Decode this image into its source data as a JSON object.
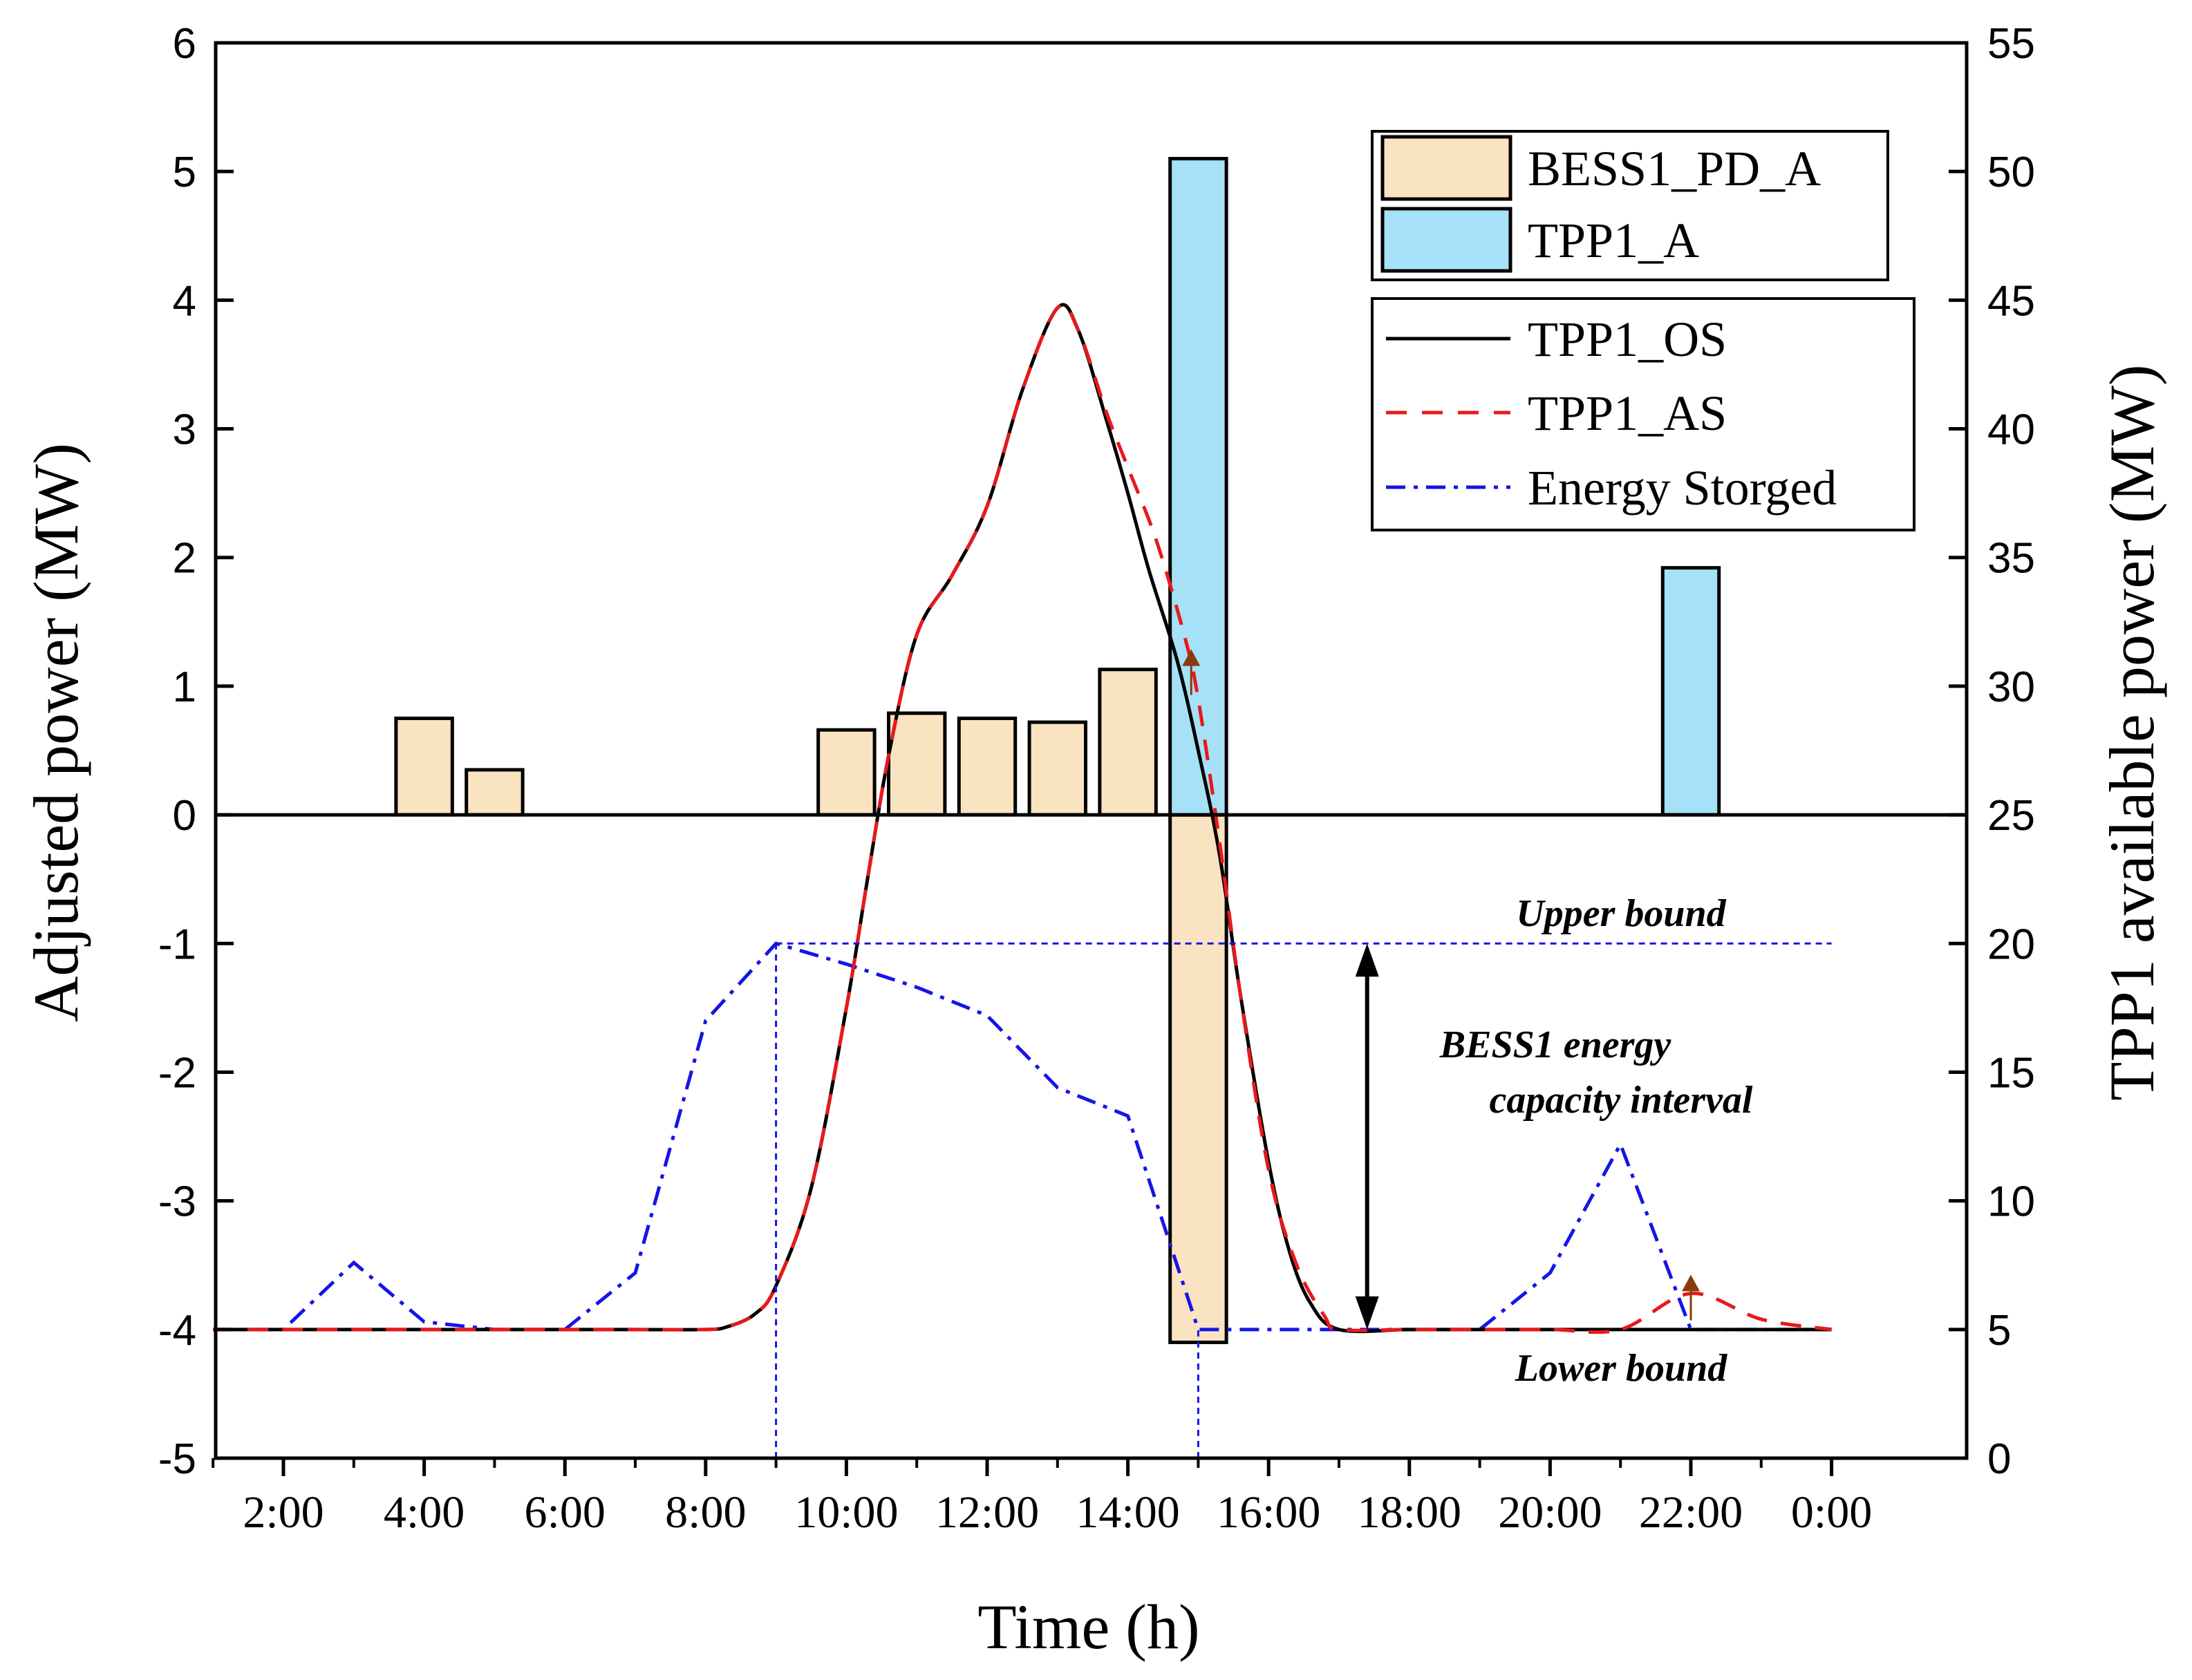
{
  "chart_data": {
    "type": "bar+line",
    "xlabel": "Time (h)",
    "ylabel_left": "Adjusted power (MW)",
    "ylabel_right": "TPP1 available power (MW)",
    "x_ticks": [
      "2:00",
      "4:00",
      "6:00",
      "8:00",
      "10:00",
      "12:00",
      "14:00",
      "16:00",
      "18:00",
      "20:00",
      "22:00",
      "0:00"
    ],
    "x_range": [
      0,
      24.0
    ],
    "y_left_range": [
      -5,
      6
    ],
    "y_left_ticks": [
      "-5",
      "-4",
      "-3",
      "-2",
      "-1",
      "0",
      "1",
      "2",
      "3",
      "4",
      "5",
      "6"
    ],
    "y_right_range": [
      0,
      55
    ],
    "y_right_ticks": [
      "0",
      "5",
      "10",
      "15",
      "20",
      "25",
      "30",
      "35",
      "40",
      "45",
      "50",
      "55"
    ],
    "grid": false,
    "legend_position": "top-right",
    "bar_series": [
      {
        "name": "BESS1_PD_A",
        "color": "#FAE3C0",
        "axis": "left",
        "bars": [
          {
            "x": 4,
            "value": 0.75
          },
          {
            "x": 5,
            "value": 0.35
          },
          {
            "x": 10,
            "value": 0.66
          },
          {
            "x": 11,
            "value": 0.79
          },
          {
            "x": 12,
            "value": 0.75
          },
          {
            "x": 13,
            "value": 0.72
          },
          {
            "x": 14,
            "value": 1.13
          },
          {
            "x": 15,
            "value": -4.1
          }
        ]
      },
      {
        "name": "TPP1_A",
        "color": "#A6E1F7",
        "axis": "left",
        "bars": [
          {
            "x": 15,
            "value": 5.1
          },
          {
            "x": 22,
            "value": 1.92
          }
        ]
      }
    ],
    "line_series": [
      {
        "name": "TPP1_OS",
        "color": "#000000",
        "dash": "solid",
        "axis": "right",
        "x": [
          1,
          2,
          3,
          4,
          5,
          6,
          7,
          8,
          8.3,
          8.7,
          9,
          9.5,
          10,
          10.3,
          10.6,
          11,
          11.5,
          12,
          12.5,
          13,
          13.3,
          13.7,
          14,
          14.3,
          14.7,
          15,
          15.3,
          15.6,
          16,
          16.3,
          16.6,
          17,
          18,
          19,
          20,
          21,
          22,
          23,
          24
        ],
        "y": [
          5,
          5,
          5,
          5,
          5,
          5,
          5,
          5,
          5.1,
          5.6,
          6.7,
          10.5,
          17.5,
          22.5,
          27.3,
          32,
          34.3,
          37,
          41.5,
          44.7,
          43.8,
          40.3,
          37.5,
          34.5,
          31,
          27.5,
          23.5,
          18,
          11.5,
          8,
          6,
          5,
          5,
          5,
          5,
          5,
          5,
          5,
          5
        ]
      },
      {
        "name": "TPP1_AS",
        "color": "#E8191B",
        "dash": "dashed",
        "axis": "right",
        "x": [
          1,
          2,
          3,
          4,
          5,
          6,
          7,
          8,
          8.3,
          8.7,
          9,
          9.5,
          10,
          10.3,
          10.6,
          11,
          11.5,
          12,
          12.5,
          13,
          13.3,
          13.7,
          14,
          14.4,
          14.8,
          15,
          15.3,
          15.6,
          16,
          16.4,
          16.8,
          17,
          18,
          19,
          20,
          21,
          22,
          23,
          24
        ],
        "y": [
          5,
          5,
          5,
          5,
          5,
          5,
          5,
          5,
          5.1,
          5.6,
          6.7,
          10.5,
          17.5,
          22.5,
          27.3,
          32,
          34.3,
          37,
          41.5,
          44.7,
          43.8,
          40.6,
          38.5,
          35.7,
          32,
          29.5,
          24,
          18,
          11.2,
          7.5,
          5.5,
          5,
          5,
          5,
          5,
          5,
          6.4,
          5.4,
          5
        ]
      },
      {
        "name": "Energy Storged",
        "color": "#1515E6",
        "dash": "dashdot",
        "axis": "right",
        "x": [
          1,
          2,
          3,
          4,
          5,
          6,
          7,
          8,
          9,
          10,
          11,
          12,
          13,
          14,
          15,
          16,
          17,
          18,
          19,
          20,
          21,
          22,
          23,
          24
        ],
        "y": [
          5,
          5,
          7.6,
          5.3,
          5,
          5,
          7.2,
          17,
          20,
          19.2,
          18.3,
          17.2,
          14.4,
          13.3,
          5,
          5,
          5,
          5,
          5,
          7.2,
          12.2,
          5,
          5,
          5
        ]
      }
    ],
    "reference_lines": [
      {
        "type": "horizontal",
        "axis": "right",
        "y": 20,
        "x_from": 9,
        "x_to": 24,
        "color": "#1515E6",
        "style": "dotted"
      },
      {
        "type": "vertical",
        "x": 9,
        "axis": "right",
        "y_from": 0,
        "y_to": 20,
        "color": "#1515E6",
        "style": "dotted"
      },
      {
        "type": "vertical",
        "x": 15,
        "axis": "right",
        "y_from": 0,
        "y_to": 5,
        "color": "#1515E6",
        "style": "dotted"
      }
    ],
    "double_arrow": {
      "x": 17.4,
      "axis": "right",
      "y_from": 5,
      "y_to": 20
    },
    "markers": [
      {
        "x": 14.9,
        "y_right": 31,
        "color": "#8B3A0E"
      },
      {
        "x": 22,
        "y_right": 6.7,
        "color": "#8B3A0E"
      }
    ],
    "annotations": {
      "upper_bound": "Upper bound",
      "lower_bound": "Lower bound",
      "interval_line1": "BESS1 energy",
      "interval_line2": "capacity interval"
    }
  }
}
